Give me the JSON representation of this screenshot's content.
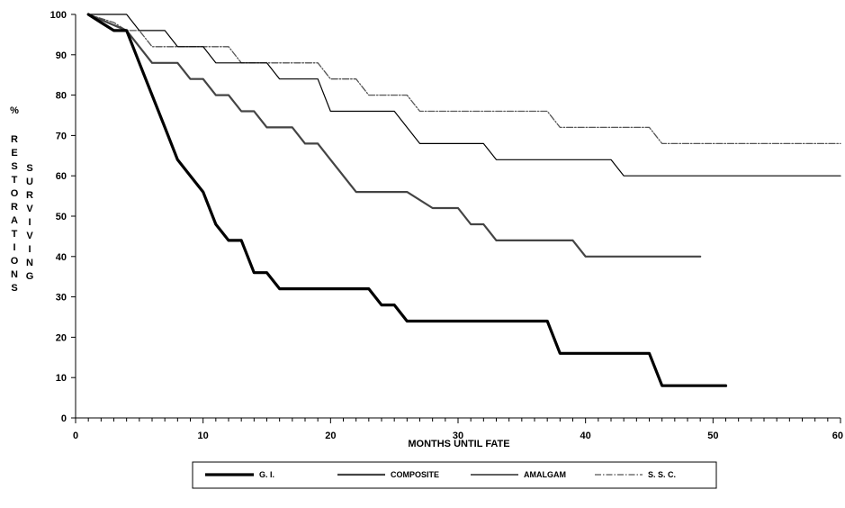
{
  "chart_data": {
    "type": "line",
    "xlabel": "MONTHS UNTIL FATE",
    "ylabel_prefix": "%",
    "ylabel_words": [
      "RESTORATIONS",
      "SURVIVING"
    ],
    "xlim": [
      0,
      60
    ],
    "ylim": [
      0,
      100
    ],
    "xticks": [
      0,
      10,
      20,
      30,
      40,
      50,
      60
    ],
    "yticks": [
      0,
      10,
      20,
      30,
      40,
      50,
      60,
      70,
      80,
      90,
      100
    ],
    "x_tick_labels": [
      "0",
      "10",
      "20",
      "30",
      "40",
      "50",
      "60"
    ],
    "y_tick_labels": [
      "0",
      "10",
      "20",
      "30",
      "40",
      "50",
      "60",
      "70",
      "80",
      "90",
      "100"
    ],
    "grid": false,
    "legend_position": "bottom",
    "series": [
      {
        "name": "G. I.",
        "style": "thick-solid",
        "color": "#000000",
        "points": [
          [
            1,
            100
          ],
          [
            2,
            98
          ],
          [
            3,
            96
          ],
          [
            4,
            96
          ],
          [
            5,
            88
          ],
          [
            6,
            80
          ],
          [
            7,
            72
          ],
          [
            8,
            64
          ],
          [
            9,
            60
          ],
          [
            10,
            56
          ],
          [
            11,
            48
          ],
          [
            12,
            44
          ],
          [
            13,
            44
          ],
          [
            14,
            36
          ],
          [
            15,
            36
          ],
          [
            16,
            32
          ],
          [
            17,
            32
          ],
          [
            22,
            32
          ],
          [
            23,
            32
          ],
          [
            24,
            28
          ],
          [
            25,
            28
          ],
          [
            26,
            24
          ],
          [
            37,
            24
          ],
          [
            38,
            16
          ],
          [
            45,
            16
          ],
          [
            46,
            8
          ],
          [
            51,
            8
          ]
        ]
      },
      {
        "name": "COMPOSITE",
        "style": "solid",
        "color": "#444444",
        "points": [
          [
            1,
            100
          ],
          [
            4,
            96
          ],
          [
            5,
            92
          ],
          [
            6,
            88
          ],
          [
            8,
            88
          ],
          [
            9,
            84
          ],
          [
            10,
            84
          ],
          [
            11,
            80
          ],
          [
            12,
            80
          ],
          [
            13,
            76
          ],
          [
            14,
            76
          ],
          [
            15,
            72
          ],
          [
            17,
            72
          ],
          [
            18,
            68
          ],
          [
            19,
            68
          ],
          [
            20,
            64
          ],
          [
            21,
            60
          ],
          [
            22,
            56
          ],
          [
            26,
            56
          ],
          [
            28,
            52
          ],
          [
            30,
            52
          ],
          [
            31,
            48
          ],
          [
            32,
            48
          ],
          [
            33,
            44
          ],
          [
            38,
            44
          ],
          [
            39,
            44
          ],
          [
            40,
            40
          ],
          [
            49,
            40
          ]
        ]
      },
      {
        "name": "AMALGAM",
        "style": "thin-solid",
        "color": "#000000",
        "points": [
          [
            1,
            100
          ],
          [
            4,
            100
          ],
          [
            5,
            96
          ],
          [
            7,
            96
          ],
          [
            8,
            92
          ],
          [
            10,
            92
          ],
          [
            11,
            88
          ],
          [
            15,
            88
          ],
          [
            16,
            84
          ],
          [
            19,
            84
          ],
          [
            20,
            76
          ],
          [
            25,
            76
          ],
          [
            26,
            72
          ],
          [
            27,
            68
          ],
          [
            32,
            68
          ],
          [
            33,
            64
          ],
          [
            42,
            64
          ],
          [
            43,
            60
          ],
          [
            60,
            60
          ]
        ]
      },
      {
        "name": "S. S. C.",
        "style": "dash-dot",
        "color": "#555555",
        "points": [
          [
            1,
            100
          ],
          [
            3,
            98
          ],
          [
            4,
            96
          ],
          [
            5,
            96
          ],
          [
            6,
            92
          ],
          [
            12,
            92
          ],
          [
            13,
            88
          ],
          [
            19,
            88
          ],
          [
            20,
            84
          ],
          [
            22,
            84
          ],
          [
            23,
            80
          ],
          [
            26,
            80
          ],
          [
            27,
            76
          ],
          [
            37,
            76
          ],
          [
            38,
            72
          ],
          [
            44,
            72
          ],
          [
            45,
            72
          ],
          [
            46,
            68
          ],
          [
            60,
            68
          ]
        ]
      }
    ]
  }
}
